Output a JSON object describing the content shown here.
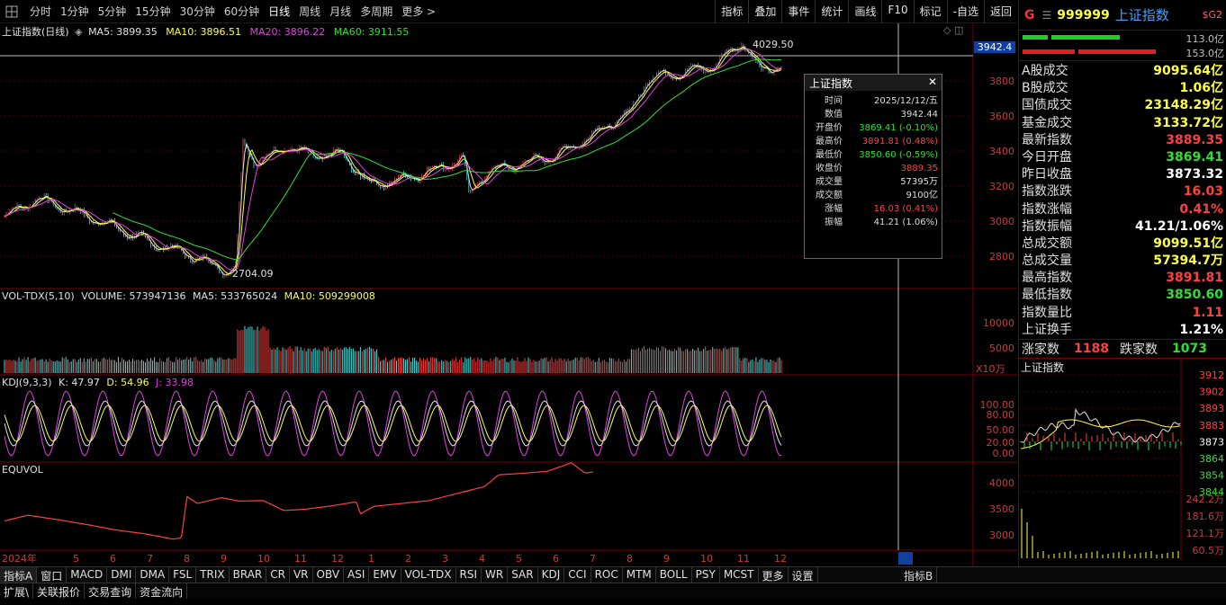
{
  "periods": [
    "分时",
    "1分钟",
    "5分钟",
    "15分钟",
    "30分钟",
    "60分钟",
    "日线",
    "周线",
    "月线",
    "多周期",
    "更多 >"
  ],
  "active_period": "日线",
  "tools": [
    "指标",
    "叠加",
    "事件",
    "统计",
    "画线",
    "F10",
    "标记",
    "-自选",
    "返回"
  ],
  "main": {
    "title": "上证指数(日线)",
    "ma5": "MA5: 3899.35",
    "ma10": "MA10: 3896.51",
    "ma20": "MA20: 3896.22",
    "ma60": "MA60: 3911.55",
    "high_mark": "4029.50",
    "low_mark": "2704.09",
    "cursor_value": "3942.4",
    "axis": [
      "3800",
      "3600",
      "3400",
      "3200",
      "3000",
      "2800"
    ]
  },
  "vol": {
    "label": "VOL-TDX(5,10)",
    "volume": "VOLUME: 573947136",
    "ma5": "MA5: 533765024",
    "ma10": "MA10: 509299008",
    "axis": [
      "10000",
      "5000"
    ],
    "unit": "X10万"
  },
  "kdj": {
    "label": "KDJ(9,3,3)",
    "k": "K: 47.97",
    "d": "D: 54.96",
    "j": "J: 33.98",
    "axis": [
      "100.00",
      "80.00",
      "50.00",
      "20.00",
      "0.00"
    ]
  },
  "equvol": {
    "label": "EQUVOL",
    "axis": [
      "4000",
      "3500",
      "3000"
    ]
  },
  "xaxis": [
    "2024年",
    "5",
    "6",
    "7",
    "8",
    "9",
    "10",
    "11",
    "12",
    "1",
    "2",
    "3",
    "4",
    "5",
    "6",
    "7",
    "8",
    "9",
    "10",
    "11",
    "12"
  ],
  "popup": {
    "title": "上证指数",
    "rows": [
      {
        "k": "时间",
        "v": "2025/12/12/五",
        "c": "#dddddd"
      },
      {
        "k": "数值",
        "v": "3942.44",
        "c": "#dddddd"
      },
      {
        "k": "开盘价",
        "v": "3869.41 (-0.10%)",
        "c": "#30e030"
      },
      {
        "k": "最高价",
        "v": "3891.81 (0.48%)",
        "c": "#ff4040"
      },
      {
        "k": "最低价",
        "v": "3850.60 (-0.59%)",
        "c": "#30e030"
      },
      {
        "k": "收盘价",
        "v": "3889.35",
        "c": "#ff4040"
      },
      {
        "k": "成交量",
        "v": "57395万",
        "c": "#dddddd"
      },
      {
        "k": "成交额",
        "v": "9100亿",
        "c": "#dddddd"
      },
      {
        "k": "涨幅",
        "v": "16.03 (0.41%)",
        "c": "#ff4040"
      },
      {
        "k": "振幅",
        "v": "41.21 (1.06%)",
        "c": "#dddddd"
      }
    ]
  },
  "quote": {
    "g": "G",
    "code": "999999",
    "name": "上证指数",
    "tag": "$G2",
    "bar1": "113.0亿",
    "bar2": "153.0亿",
    "rows": [
      {
        "k": "A股成交",
        "v": "9095.64亿",
        "c": "#ffff40"
      },
      {
        "k": "B股成交",
        "v": "1.06亿",
        "c": "#ffff40"
      },
      {
        "k": "国债成交",
        "v": "23148.29亿",
        "c": "#ffff40"
      },
      {
        "k": "基金成交",
        "v": "3133.72亿",
        "c": "#ffff40"
      },
      {
        "k": "最新指数",
        "v": "3889.35",
        "c": "#ff4040"
      },
      {
        "k": "今日开盘",
        "v": "3869.41",
        "c": "#30e030"
      },
      {
        "k": "昨日收盘",
        "v": "3873.32",
        "c": "#ffffff"
      },
      {
        "k": "指数涨跌",
        "v": "16.03",
        "c": "#ff4040"
      },
      {
        "k": "指数涨幅",
        "v": "0.41%",
        "c": "#ff4040"
      },
      {
        "k": "指数振幅",
        "v": "41.21/1.06%",
        "c": "#ffffff"
      },
      {
        "k": "总成交额",
        "v": "9099.51亿",
        "c": "#ffff40"
      },
      {
        "k": "总成交量",
        "v": "57394.7万",
        "c": "#ffff40"
      },
      {
        "k": "最高指数",
        "v": "3891.81",
        "c": "#ff4040"
      },
      {
        "k": "最低指数",
        "v": "3850.60",
        "c": "#30e030"
      },
      {
        "k": "指数量比",
        "v": "1.11",
        "c": "#ff4040"
      },
      {
        "k": "上证换手",
        "v": "1.21%",
        "c": "#ffffff"
      }
    ],
    "up_label": "涨家数",
    "up": "1188",
    "down_label": "跌家数",
    "down": "1073",
    "mini_title": "上证指数",
    "mini_axis": [
      "3912",
      "3902",
      "3893",
      "3883",
      "3873",
      "3864",
      "3854",
      "3844"
    ],
    "mini_vol": [
      "242.2万",
      "181.6万",
      "121.1万",
      "60.5万"
    ]
  },
  "indicator_tabs": [
    "指标A",
    "窗口",
    "MACD",
    "DMI",
    "DMA",
    "FSL",
    "TRIX",
    "BRAR",
    "CR",
    "VR",
    "OBV",
    "ASI",
    "EMV",
    "VOL-TDX",
    "RSI",
    "WR",
    "SAR",
    "KDJ",
    "CCI",
    "ROC",
    "MTM",
    "BOLL",
    "PSY",
    "MCST",
    "更多",
    "设置"
  ],
  "right_tab": "指标B",
  "bottom_tabs": [
    "扩展\\",
    "关联报价",
    "交易查询",
    "资金流向"
  ]
}
